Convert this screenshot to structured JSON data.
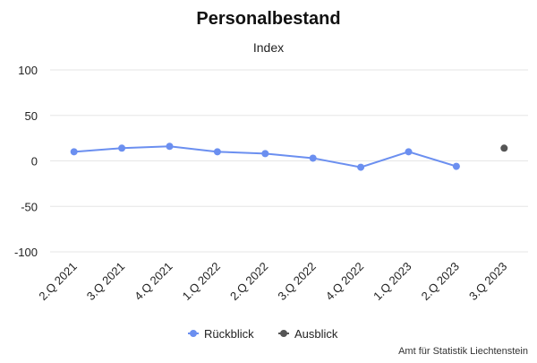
{
  "chart_data": {
    "type": "line",
    "title": "Personalbestand",
    "subtitle": "Index",
    "categories": [
      "2.Q 2021",
      "3.Q 2021",
      "4.Q 2021",
      "1.Q 2022",
      "2.Q 2022",
      "3.Q 2022",
      "4.Q 2022",
      "1.Q 2023",
      "2.Q 2023",
      "3.Q 2023"
    ],
    "ylim": [
      -100,
      100
    ],
    "yticks": [
      100,
      50,
      0,
      -50,
      -100
    ],
    "ytick_labels": [
      "100",
      "50",
      "0",
      "-50",
      "-100"
    ],
    "grid": true,
    "legend_position": "bottom-center",
    "series": [
      {
        "name": "Rückblick",
        "color": "#6b8ff0",
        "values": [
          10,
          14,
          16,
          10,
          8,
          3,
          -7,
          10,
          -6,
          null
        ]
      },
      {
        "name": "Ausblick",
        "color": "#555555",
        "values": [
          null,
          null,
          null,
          null,
          null,
          null,
          null,
          null,
          null,
          14
        ]
      }
    ],
    "credits": "Amt für Statistik Liechtenstein"
  }
}
